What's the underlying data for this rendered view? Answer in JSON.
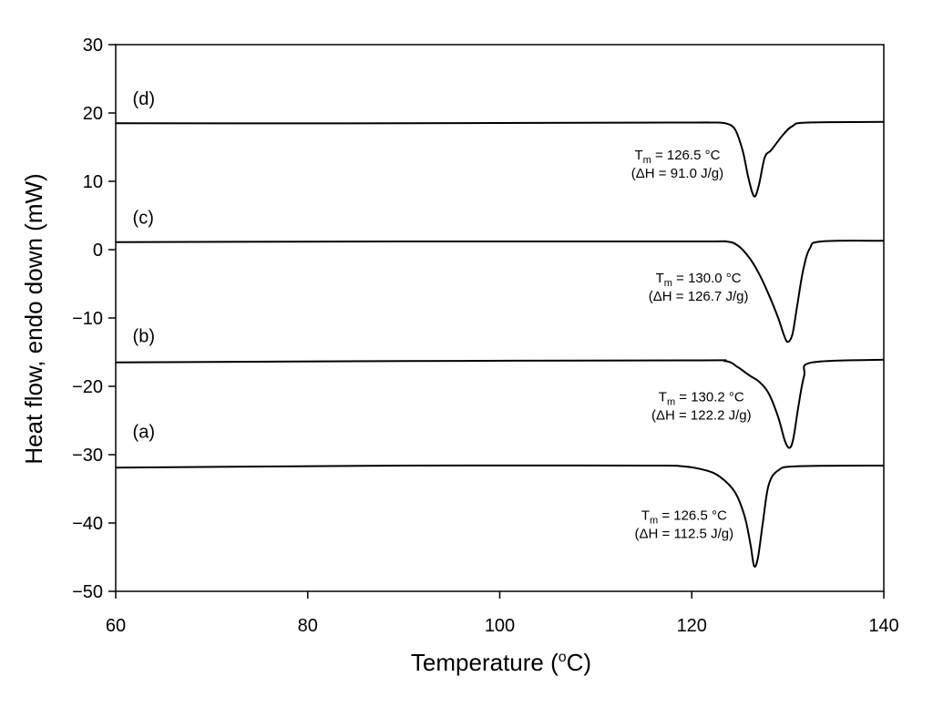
{
  "chart_data": {
    "type": "line",
    "title": "",
    "xlabel": "Temperature (",
    "xlabel_sup": "o",
    "xlabel_end": "C)",
    "ylabel": "Heat flow, endo down (mW)",
    "xlim": [
      60,
      140
    ],
    "ylim": [
      -50,
      30
    ],
    "xticks": [
      60,
      80,
      100,
      120,
      140
    ],
    "yticks": [
      30,
      20,
      10,
      0,
      -10,
      -20,
      -30,
      -40,
      -50
    ],
    "ytick_labels": [
      "30",
      "20",
      "10",
      "0",
      "−10",
      "−20",
      "−30",
      "−40",
      "−50"
    ],
    "grid": false,
    "line_color": "#000000",
    "series": [
      {
        "label": "(d)",
        "label_pos": [
          61,
          21.2
        ],
        "annotation": {
          "tm": "126.5 °C",
          "dh": "(ΔH = 91.0 J/g)",
          "pos": [
            118.5,
            13.2
          ]
        },
        "points": [
          [
            60,
            18.5
          ],
          [
            90,
            18.5
          ],
          [
            118,
            18.6
          ],
          [
            122,
            18.6
          ],
          [
            123.5,
            18.5
          ],
          [
            124.5,
            17.6
          ],
          [
            125.3,
            14.5
          ],
          [
            125.9,
            10.5
          ],
          [
            126.5,
            7.8
          ],
          [
            127,
            9.5
          ],
          [
            127.6,
            13.5
          ],
          [
            128.3,
            14.6
          ],
          [
            129.5,
            16.8
          ],
          [
            130.5,
            18.1
          ],
          [
            132,
            18.6
          ],
          [
            140,
            18.7
          ]
        ]
      },
      {
        "label": "(c)",
        "label_pos": [
          61,
          3.8
        ],
        "annotation": {
          "tm": "130.0 °C",
          "dh": "(ΔH = 126.7 J/g)",
          "pos": [
            120.7,
            -4.8
          ]
        },
        "points": [
          [
            60,
            1.1
          ],
          [
            90,
            1.2
          ],
          [
            120,
            1.2
          ],
          [
            123.5,
            1.2
          ],
          [
            124.8,
            0.6
          ],
          [
            126,
            -1.2
          ],
          [
            127,
            -3.5
          ],
          [
            128,
            -6.5
          ],
          [
            129,
            -10
          ],
          [
            129.6,
            -12.5
          ],
          [
            130,
            -13.5
          ],
          [
            130.5,
            -12.3
          ],
          [
            131,
            -8
          ],
          [
            131.6,
            -3
          ],
          [
            132.3,
            0.2
          ],
          [
            133.5,
            1.2
          ],
          [
            140,
            1.3
          ]
        ]
      },
      {
        "label": "(b)",
        "label_pos": [
          61,
          -13.5
        ],
        "annotation": {
          "tm": "130.2 °C",
          "dh": "(ΔH = 122.2 J/g)",
          "pos": [
            121,
            -22.2
          ]
        },
        "points": [
          [
            60,
            -16.5
          ],
          [
            90,
            -16.3
          ],
          [
            120,
            -16.2
          ],
          [
            123.5,
            -16.3
          ],
          [
            124.8,
            -17.2
          ],
          [
            126,
            -18.4
          ],
          [
            127,
            -19.3
          ],
          [
            128,
            -21
          ],
          [
            129,
            -24.5
          ],
          [
            129.7,
            -28
          ],
          [
            130.2,
            -29
          ],
          [
            130.6,
            -27.5
          ],
          [
            131.1,
            -23
          ],
          [
            131.7,
            -18.5
          ],
          [
            132.5,
            -16.5
          ],
          [
            140,
            -16.1
          ]
        ]
      },
      {
        "label": "(a)",
        "label_pos": [
          61,
          -27.5
        ],
        "annotation": {
          "tm": "126.5 °C",
          "dh": "(ΔH = 112.5 J/g)",
          "pos": [
            119.2,
            -39.5
          ]
        },
        "points": [
          [
            60,
            -31.9
          ],
          [
            90,
            -31.6
          ],
          [
            115,
            -31.6
          ],
          [
            119,
            -31.7
          ],
          [
            121.5,
            -32.3
          ],
          [
            123,
            -33.3
          ],
          [
            124.5,
            -35.5
          ],
          [
            125.5,
            -39
          ],
          [
            126.1,
            -43
          ],
          [
            126.5,
            -46.3
          ],
          [
            126.9,
            -45
          ],
          [
            127.4,
            -40
          ],
          [
            128,
            -34.5
          ],
          [
            129,
            -32.3
          ],
          [
            131,
            -31.7
          ],
          [
            140,
            -31.6
          ]
        ]
      }
    ]
  }
}
